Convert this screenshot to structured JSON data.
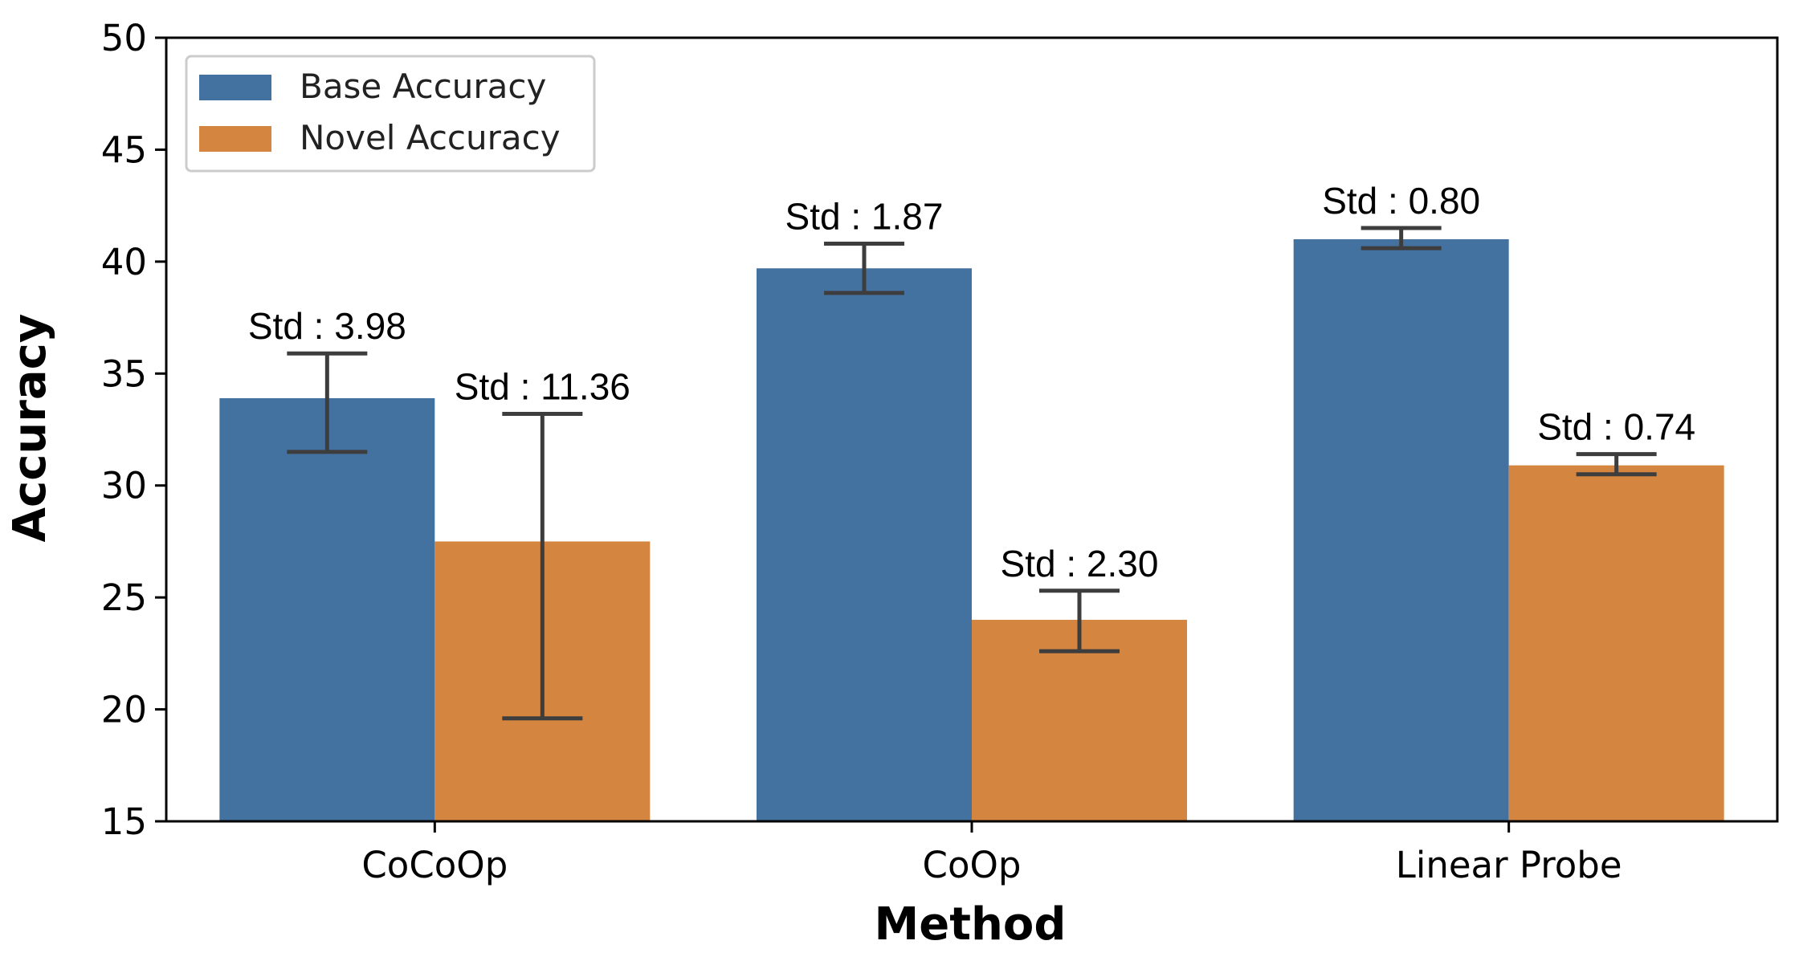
{
  "chart_data": {
    "type": "bar",
    "title": "",
    "xlabel": "Method",
    "ylabel": "Accuracy",
    "ylim": [
      15,
      50
    ],
    "yticks": [
      15,
      20,
      25,
      30,
      35,
      40,
      45,
      50
    ],
    "categories": [
      "CoCoOp",
      "CoOp",
      "Linear Probe"
    ],
    "legend_position": "top-left",
    "series": [
      {
        "name": "Base Accuracy",
        "color": "#4472a0",
        "values": [
          33.9,
          39.7,
          41.0
        ],
        "err_low": [
          31.5,
          38.6,
          40.6
        ],
        "err_high": [
          35.9,
          40.8,
          41.5
        ],
        "std_labels": [
          "Std : 3.98",
          "Std : 1.87",
          "Std : 0.80"
        ]
      },
      {
        "name": "Novel Accuracy",
        "color": "#d48540",
        "values": [
          27.5,
          24.0,
          30.9
        ],
        "err_low": [
          19.6,
          22.6,
          30.5
        ],
        "err_high": [
          33.2,
          25.3,
          31.4
        ],
        "std_labels": [
          "Std : 11.36",
          "Std : 2.30",
          "Std : 0.74"
        ]
      }
    ]
  }
}
